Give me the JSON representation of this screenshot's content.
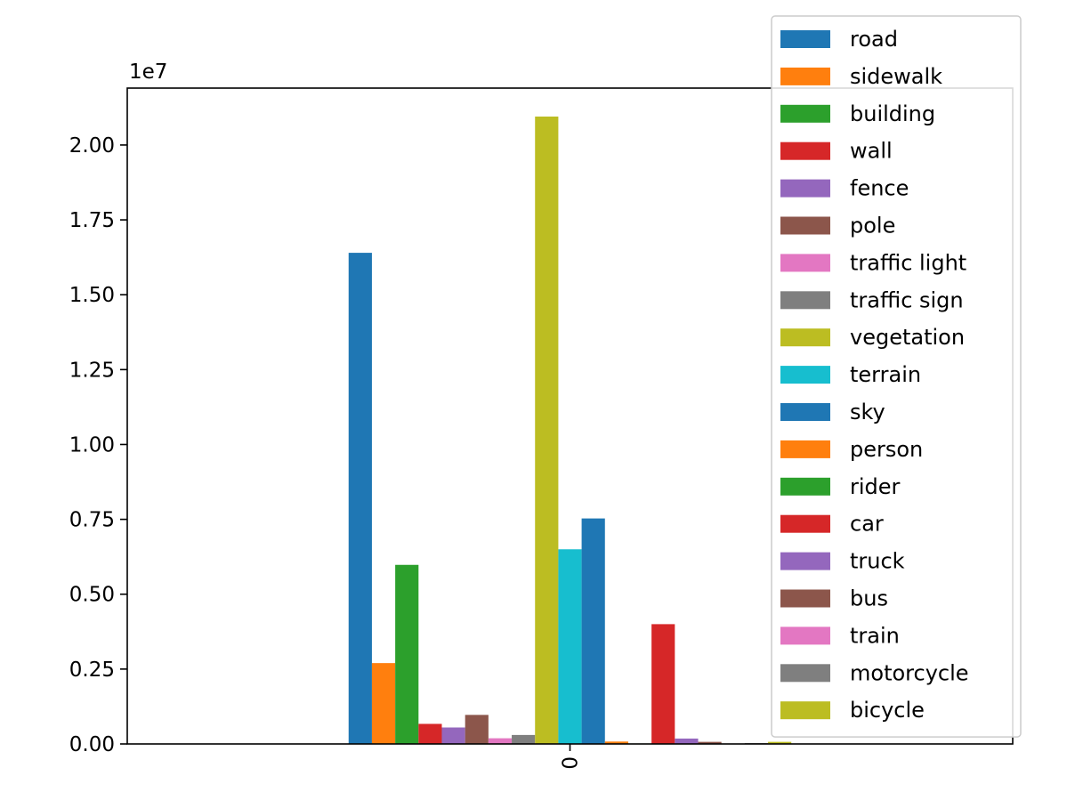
{
  "chart_data": {
    "type": "bar",
    "categories": [
      "0"
    ],
    "offset_label": "1e7",
    "ylim": [
      0,
      21900000
    ],
    "yticks": [
      0,
      2500000,
      5000000,
      7500000,
      10000000,
      12500000,
      15000000,
      17500000,
      20000000
    ],
    "ytick_labels": [
      "0.00",
      "0.25",
      "0.50",
      "0.75",
      "1.00",
      "1.25",
      "1.50",
      "1.75",
      "2.00"
    ],
    "xtick_labels": [
      "0"
    ],
    "grid": false,
    "legend_position": "upper right",
    "series": [
      {
        "name": "road",
        "color": "#1f77b4",
        "values": [
          16400000
        ]
      },
      {
        "name": "sidewalk",
        "color": "#ff7f0e",
        "values": [
          2700000
        ]
      },
      {
        "name": "building",
        "color": "#2ca02c",
        "values": [
          5980000
        ]
      },
      {
        "name": "wall",
        "color": "#d62728",
        "values": [
          670000
        ]
      },
      {
        "name": "fence",
        "color": "#9467bd",
        "values": [
          550000
        ]
      },
      {
        "name": "pole",
        "color": "#8c564b",
        "values": [
          970000
        ]
      },
      {
        "name": "traffic light",
        "color": "#e377c2",
        "values": [
          190000
        ]
      },
      {
        "name": "traffic sign",
        "color": "#7f7f7f",
        "values": [
          300000
        ]
      },
      {
        "name": "vegetation",
        "color": "#bcbd22",
        "values": [
          20950000
        ]
      },
      {
        "name": "terrain",
        "color": "#17becf",
        "values": [
          6500000
        ]
      },
      {
        "name": "sky",
        "color": "#1f77b4",
        "values": [
          7530000
        ]
      },
      {
        "name": "person",
        "color": "#ff7f0e",
        "values": [
          80000
        ]
      },
      {
        "name": "rider",
        "color": "#2ca02c",
        "values": [
          15000
        ]
      },
      {
        "name": "car",
        "color": "#d62728",
        "values": [
          4000000
        ]
      },
      {
        "name": "truck",
        "color": "#9467bd",
        "values": [
          180000
        ]
      },
      {
        "name": "bus",
        "color": "#8c564b",
        "values": [
          70000
        ]
      },
      {
        "name": "train",
        "color": "#e377c2",
        "values": [
          15000
        ]
      },
      {
        "name": "motorcycle",
        "color": "#7f7f7f",
        "values": [
          30000
        ]
      },
      {
        "name": "bicycle",
        "color": "#bcbd22",
        "values": [
          70000
        ]
      }
    ]
  }
}
